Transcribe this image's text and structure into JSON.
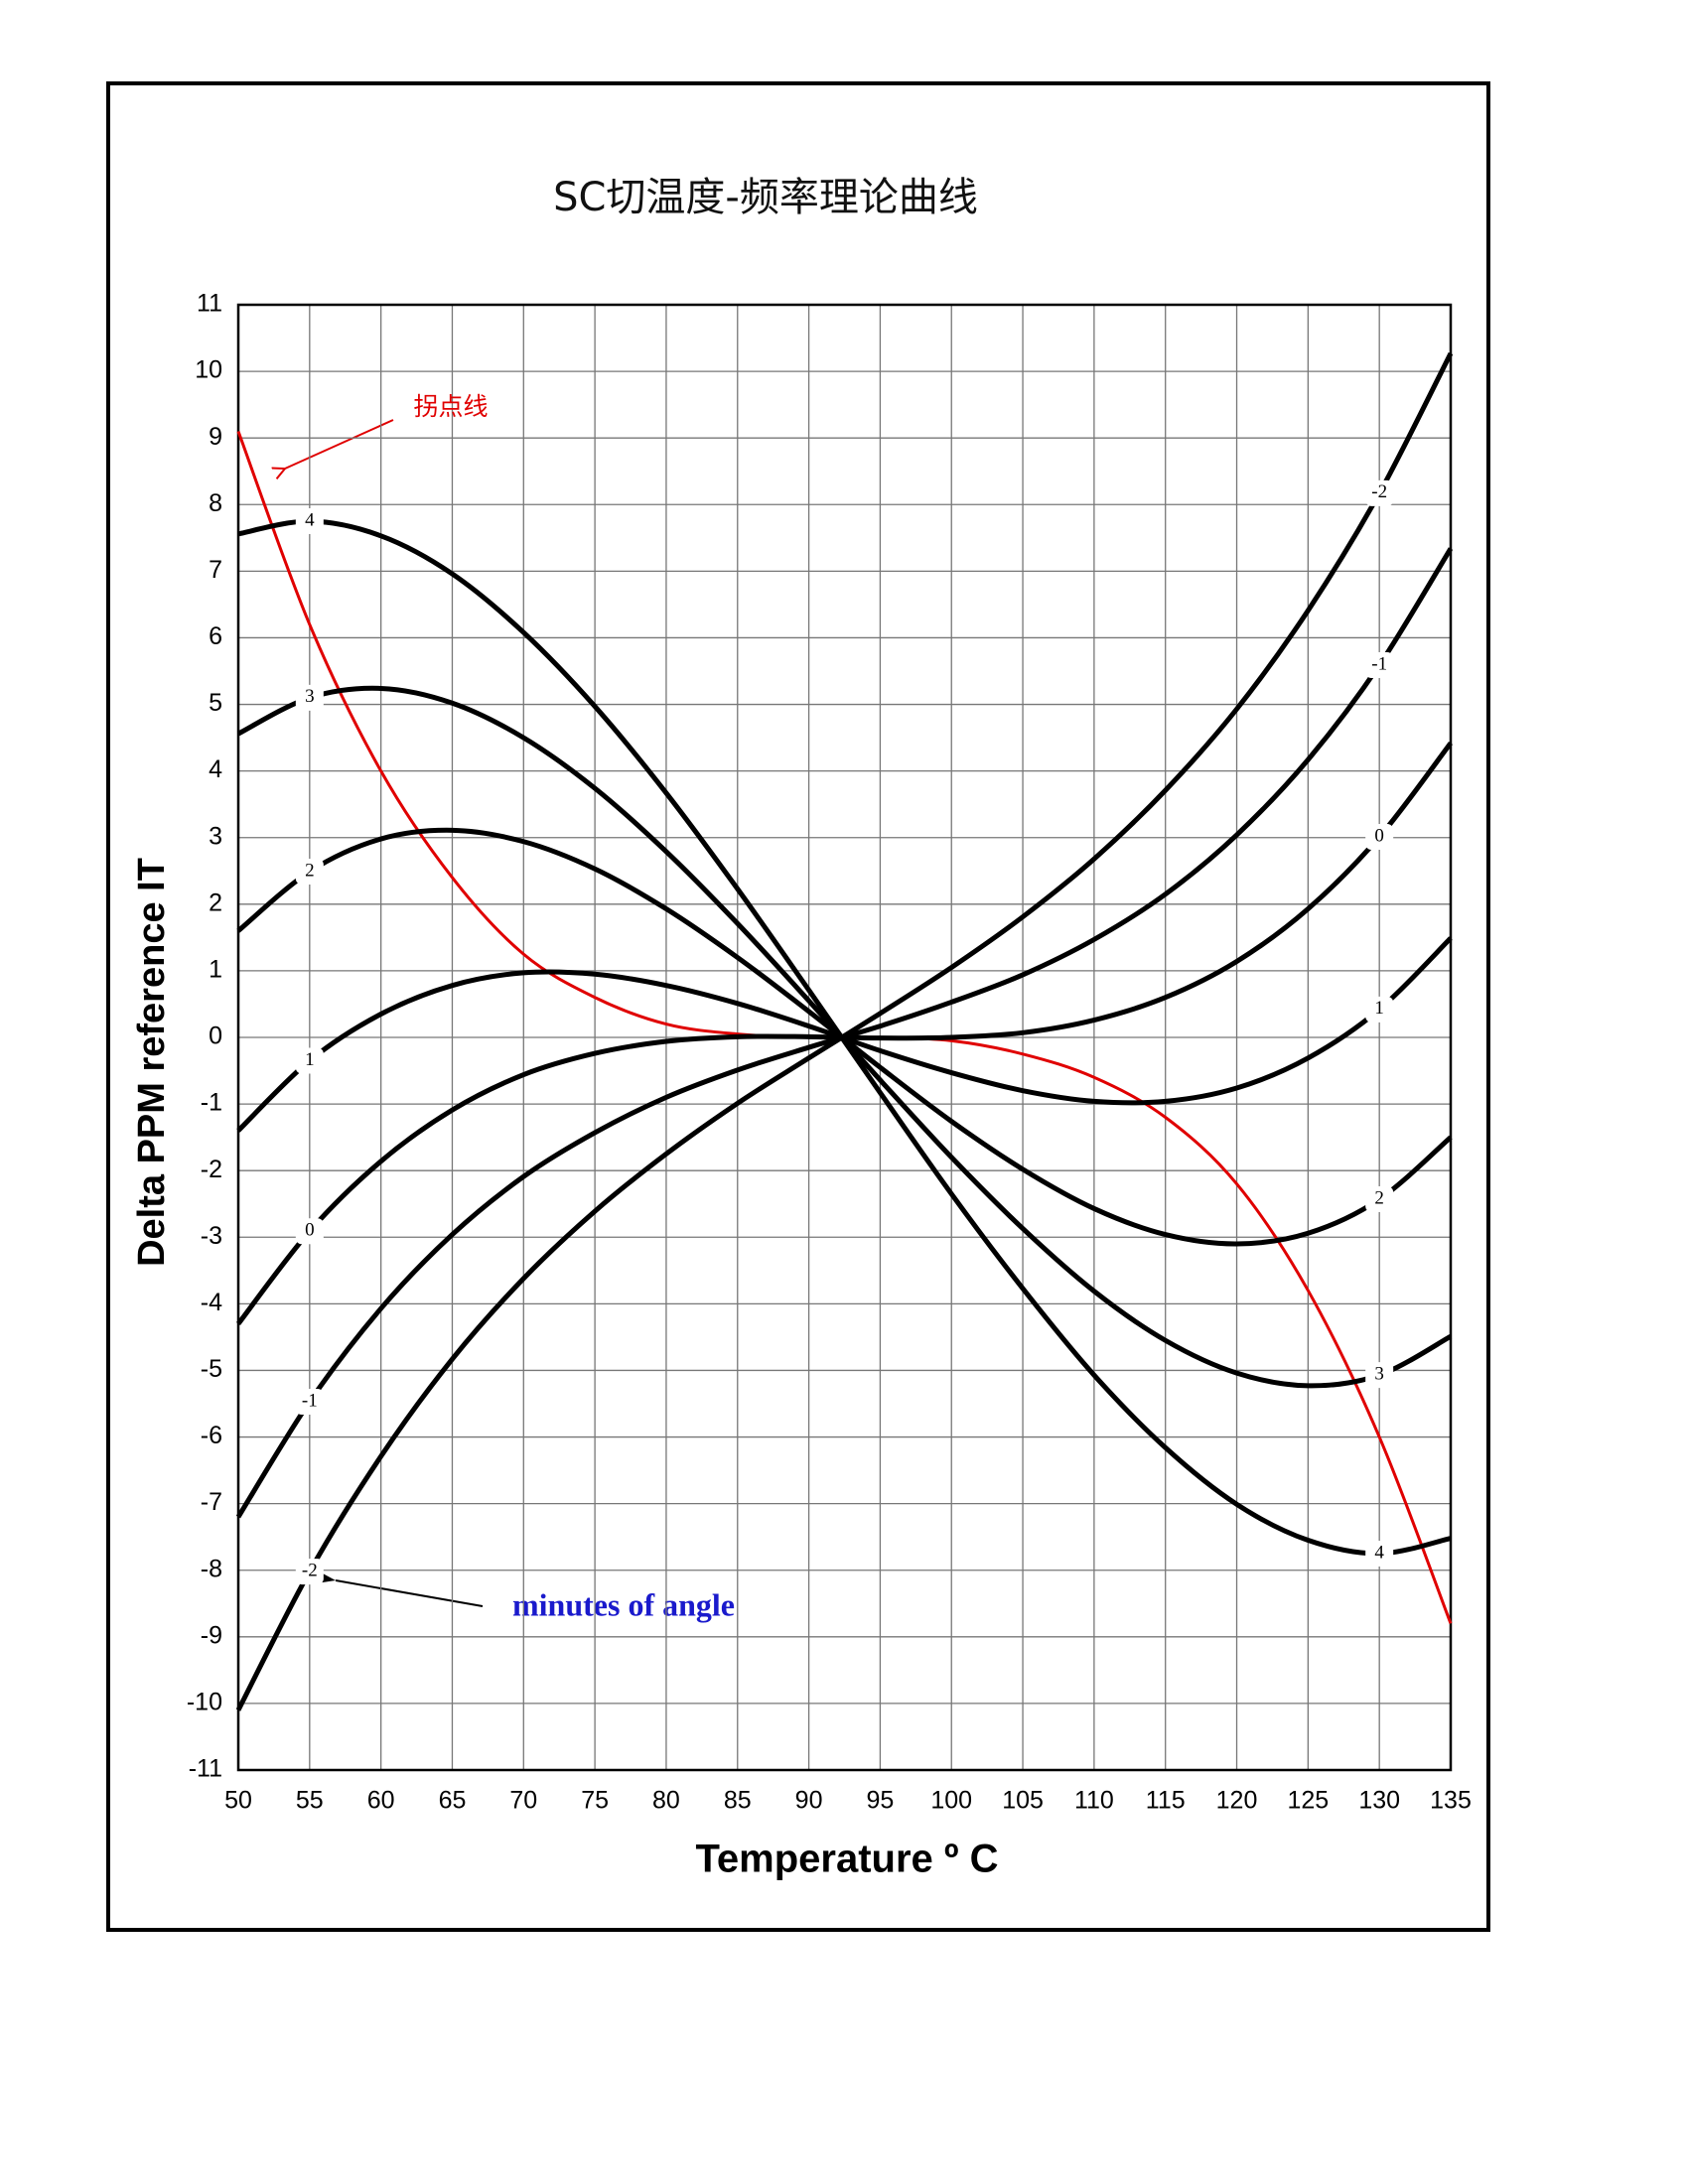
{
  "chart_data": {
    "type": "line",
    "title": "SC切温度-频率理论曲线",
    "xlabel": "Temperature º C",
    "ylabel": "Delta PPM reference IT",
    "annotations": [
      "minutes of angle"
    ],
    "x": [
      50,
      55,
      60,
      65,
      70,
      75,
      80,
      85,
      90,
      95,
      100,
      105,
      110,
      115,
      120,
      125,
      130,
      135
    ],
    "series": [
      {
        "name": "拐点线",
        "color": "#e00000",
        "values": [
          9.1,
          6.2,
          4.0,
          2.4,
          1.25,
          0.6,
          0.2,
          0.05,
          0.0,
          0.0,
          -0.05,
          -0.25,
          -0.6,
          -1.2,
          -2.2,
          -3.8,
          -6.0,
          -8.8
        ]
      },
      {
        "name": "4",
        "color": "#000000",
        "values": [
          7.56,
          7.75,
          7.53,
          6.96,
          6.08,
          4.97,
          3.67,
          2.23,
          0.71,
          -0.83,
          -2.35,
          -3.77,
          -5.07,
          -6.16,
          -7.01,
          -7.55,
          -7.75,
          -7.52
        ]
      },
      {
        "name": "3",
        "color": "#000000",
        "values": [
          4.56,
          5.1,
          5.24,
          5.02,
          4.5,
          3.74,
          2.79,
          1.71,
          0.55,
          -0.64,
          -1.8,
          -2.87,
          -3.81,
          -4.55,
          -5.04,
          -5.23,
          -5.07,
          -4.49
        ]
      },
      {
        "name": "2",
        "color": "#000000",
        "values": [
          1.6,
          2.49,
          2.98,
          3.11,
          2.94,
          2.53,
          1.93,
          1.2,
          0.39,
          -0.45,
          -1.26,
          -1.98,
          -2.57,
          -2.96,
          -3.1,
          -2.94,
          -2.43,
          -1.5
        ]
      },
      {
        "name": "1",
        "color": "#000000",
        "values": [
          -1.4,
          -0.35,
          0.35,
          0.78,
          0.97,
          0.95,
          0.78,
          0.51,
          0.17,
          -0.2,
          -0.53,
          -0.8,
          -0.96,
          -0.96,
          -0.76,
          -0.31,
          0.42,
          1.49
        ]
      },
      {
        "name": "0",
        "color": "#000000",
        "values": [
          -4.3,
          -2.91,
          -1.86,
          -1.09,
          -0.56,
          -0.24,
          -0.06,
          0.01,
          0.01,
          -0.01,
          0.0,
          0.07,
          0.26,
          0.6,
          1.14,
          1.93,
          3.01,
          4.42
        ]
      },
      {
        "name": "-1",
        "color": "#000000",
        "values": [
          -7.2,
          -5.47,
          -4.07,
          -2.96,
          -2.09,
          -1.43,
          -0.9,
          -0.49,
          -0.15,
          0.17,
          0.53,
          0.94,
          1.47,
          2.15,
          3.04,
          4.17,
          5.59,
          7.34
        ]
      },
      {
        "name": "-2",
        "color": "#000000",
        "values": [
          -10.1,
          -8.02,
          -6.29,
          -4.83,
          -3.62,
          -2.61,
          -1.75,
          -0.99,
          -0.31,
          0.36,
          1.05,
          1.81,
          2.68,
          3.71,
          4.93,
          6.41,
          8.17,
          10.27
        ]
      }
    ],
    "xlim": [
      50,
      135
    ],
    "xticks": [
      50,
      55,
      60,
      65,
      70,
      75,
      80,
      85,
      90,
      95,
      100,
      105,
      110,
      115,
      120,
      125,
      130,
      135
    ],
    "ylim": [
      -11,
      11
    ],
    "yticks": [
      -11,
      -10,
      -9,
      -8,
      -7,
      -6,
      -5,
      -4,
      -3,
      -2,
      -1,
      0,
      1,
      2,
      3,
      4,
      5,
      6,
      7,
      8,
      9,
      10,
      11
    ],
    "grid": true
  }
}
